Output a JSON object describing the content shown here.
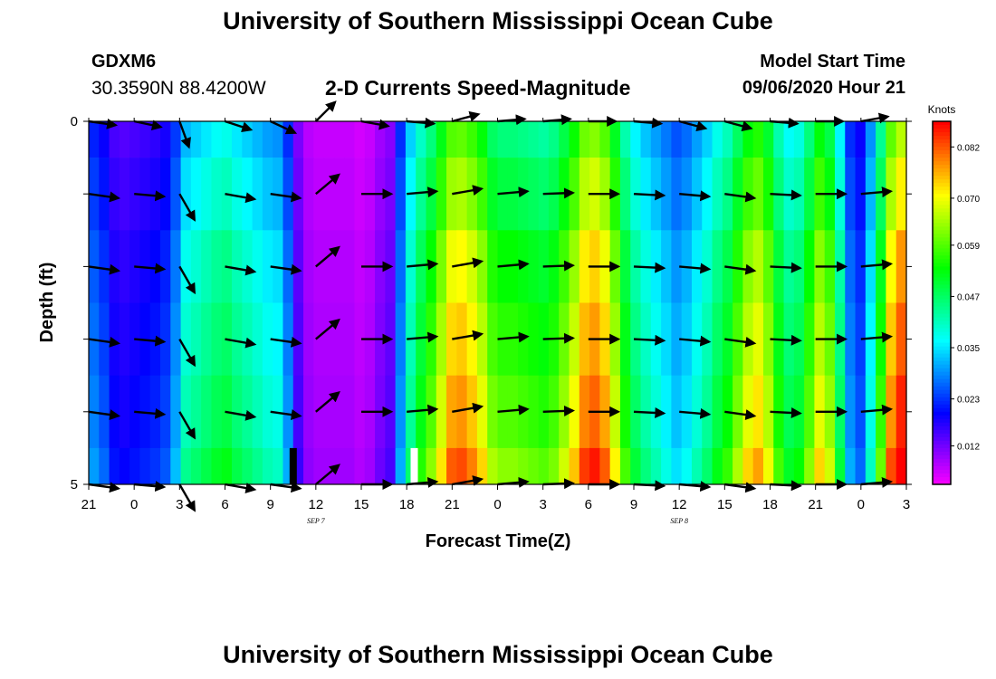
{
  "header": {
    "title": "University of Southern Mississippi Ocean Cube",
    "station_id": "GDXM6",
    "coords": "30.3590N 88.4200W",
    "chart_title": "2-D Currents Speed-Magnitude",
    "start_label": "Model Start Time",
    "start_value": "09/06/2020 Hour 21"
  },
  "footer": {
    "title": "University of Southern Mississippi Ocean Cube"
  },
  "chart_data": {
    "type": "heatmap",
    "title": "2-D Currents Speed-Magnitude",
    "xlabel": "Forecast Time(Z)",
    "ylabel": "Depth (ft)",
    "x_ticks": [
      "21",
      "0",
      "3",
      "6",
      "9",
      "12",
      "15",
      "18",
      "21",
      "0",
      "3",
      "6",
      "9",
      "12",
      "15",
      "18",
      "21",
      "0",
      "3"
    ],
    "date_labels": [
      {
        "text": "SEP 7",
        "tick_index": 5
      },
      {
        "text": "SEP 8",
        "tick_index": 13
      }
    ],
    "y_ticks": [
      "0",
      "5"
    ],
    "ylim": [
      0,
      5
    ],
    "colorbar": {
      "label": "Knots",
      "ticks": [
        "0.082",
        "0.070",
        "0.059",
        "0.047",
        "0.035",
        "0.023",
        "0.012"
      ],
      "range": [
        0.003,
        0.088
      ]
    },
    "layer_depths_ft": [
      0,
      0.5,
      1.5,
      2.5,
      3.5,
      4.5,
      5
    ],
    "speed_profile_knots": [
      0.026,
      0.023,
      0.018,
      0.017,
      0.018,
      0.019,
      0.02,
      0.022,
      0.028,
      0.038,
      0.04,
      0.042,
      0.044,
      0.045,
      0.042,
      0.04,
      0.038,
      0.036,
      0.035,
      0.027,
      0.014,
      0.009,
      0.008,
      0.008,
      0.008,
      0.008,
      0.007,
      0.008,
      0.011,
      0.013,
      0.027,
      0.04,
      0.048,
      0.054,
      0.062,
      0.07,
      0.071,
      0.068,
      0.063,
      0.056,
      0.054,
      0.054,
      0.053,
      0.052,
      0.051,
      0.053,
      0.058,
      0.064,
      0.072,
      0.074,
      0.07,
      0.061,
      0.05,
      0.043,
      0.039,
      0.036,
      0.033,
      0.03,
      0.032,
      0.036,
      0.04,
      0.045,
      0.049,
      0.056,
      0.063,
      0.066,
      0.06,
      0.05,
      0.044,
      0.046,
      0.054,
      0.063,
      0.058,
      0.043,
      0.027,
      0.023,
      0.035,
      0.052,
      0.071,
      0.078
    ],
    "depth_factors": [
      0.85,
      0.92,
      1.0,
      1.05,
      1.1,
      1.17
    ],
    "arrows": {
      "times_hours": [
        0,
        3,
        6,
        9,
        12,
        15,
        18,
        21,
        24,
        27,
        30,
        33,
        36,
        39,
        42,
        45,
        48,
        51,
        54
      ],
      "depths_ft": [
        0,
        1,
        2,
        3,
        4,
        5
      ],
      "directions_deg": [
        -8,
        -5,
        -60,
        -10,
        -8,
        40,
        0,
        5,
        10,
        5,
        2,
        0,
        -3,
        -5,
        -8,
        -3,
        0,
        5,
        5
      ],
      "surface_directions_deg": [
        -8,
        -12,
        -70,
        -18,
        -25,
        45,
        -10,
        -5,
        15,
        5,
        5,
        0,
        -5,
        -15,
        -15,
        -5,
        0,
        10,
        5
      ]
    },
    "markers": [
      {
        "time_hours": 13.5,
        "color": "#000000"
      },
      {
        "time_hours": 21.5,
        "color": "#ffffff"
      }
    ]
  }
}
